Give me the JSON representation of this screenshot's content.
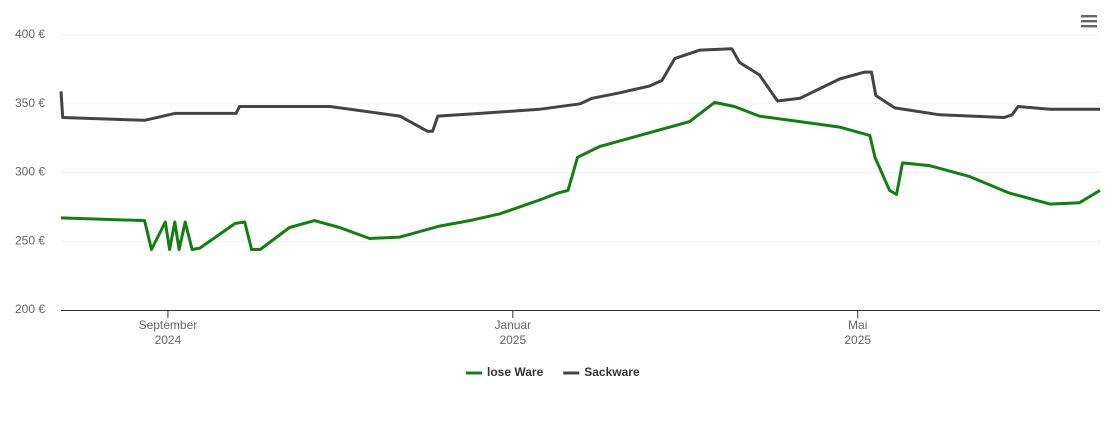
{
  "chart_data": {
    "type": "line",
    "ylim": [
      200,
      400
    ],
    "yticks": [
      {
        "value": 200,
        "label": "200 €"
      },
      {
        "value": 250,
        "label": "250 €"
      },
      {
        "value": 300,
        "label": "300 €"
      },
      {
        "value": 350,
        "label": "350 €"
      },
      {
        "value": 400,
        "label": "400 €"
      }
    ],
    "xlim": [
      7.76,
      19.81
    ],
    "xticks": [
      {
        "value": 9,
        "label": [
          "September",
          "2024"
        ]
      },
      {
        "value": 13,
        "label": [
          "Januar",
          "2025"
        ]
      },
      {
        "value": 17,
        "label": [
          "Mai",
          "2025"
        ]
      }
    ],
    "grid": true,
    "legend": "bottom",
    "series": [
      {
        "name": "lose Ware",
        "color": "#108010",
        "x": [
          7.76,
          8.73,
          8.81,
          8.97,
          9.02,
          9.08,
          9.13,
          9.2,
          9.28,
          9.37,
          9.78,
          9.89,
          9.97,
          10.07,
          10.41,
          10.7,
          10.99,
          11.34,
          11.69,
          12.15,
          12.5,
          12.85,
          13.31,
          13.52,
          13.64,
          13.75,
          14.01,
          14.47,
          15.05,
          15.34,
          15.57,
          15.86,
          16.33,
          16.79,
          17.14,
          17.2,
          17.37,
          17.45,
          17.52,
          17.83,
          18.3,
          18.76,
          19.23,
          19.57,
          19.81
        ],
        "values": [
          267,
          265,
          244,
          264,
          244,
          264,
          244,
          264,
          244,
          245,
          263,
          264,
          244,
          244,
          260,
          265,
          260,
          252,
          253,
          261,
          265,
          270,
          280,
          285,
          287,
          311,
          319,
          327,
          337,
          351,
          348,
          341,
          337,
          333,
          327,
          311,
          287,
          284,
          307,
          305,
          297,
          285,
          277,
          278,
          287
        ]
      },
      {
        "name": "Sackware",
        "color": "#434348",
        "x": [
          7.76,
          7.78,
          8.73,
          9.08,
          9.79,
          9.83,
          10.88,
          11.69,
          12.01,
          12.07,
          12.13,
          12.62,
          13.31,
          13.78,
          13.92,
          14.24,
          14.59,
          14.73,
          14.88,
          15.17,
          15.54,
          15.63,
          15.86,
          16.07,
          16.33,
          16.79,
          17.08,
          17.16,
          17.21,
          17.43,
          17.95,
          18.7,
          18.79,
          18.86,
          19.23,
          19.81
        ],
        "values": [
          359,
          340,
          338,
          343,
          343,
          348,
          348,
          341,
          330,
          330,
          341,
          343,
          346,
          350,
          354,
          358,
          363,
          367,
          383,
          389,
          390,
          380,
          371,
          352,
          354,
          368,
          373,
          373,
          356,
          347,
          342,
          340,
          342,
          348,
          346,
          346
        ]
      }
    ]
  }
}
